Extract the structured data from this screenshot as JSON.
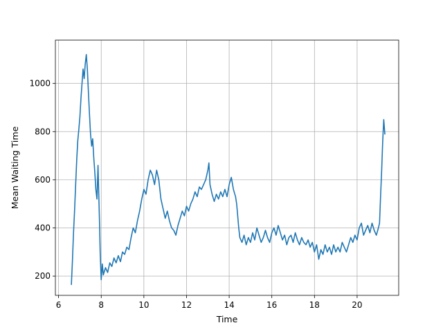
{
  "chart_data": {
    "type": "line",
    "title": "",
    "xlabel": "Time",
    "ylabel": "Mean Waiting Time",
    "xlim": [
      5.85,
      21.95
    ],
    "ylim": [
      120,
      1180
    ],
    "x_ticks": [
      6,
      8,
      10,
      12,
      14,
      16,
      18,
      20
    ],
    "y_ticks": [
      200,
      400,
      600,
      800,
      1000
    ],
    "x_tick_labels": [
      "6",
      "8",
      "10",
      "12",
      "14",
      "16",
      "18",
      "20"
    ],
    "y_tick_labels": [
      "200",
      "400",
      "600",
      "800",
      "1000"
    ],
    "grid": true,
    "legend": "none",
    "series": [
      {
        "color": "#1f77b4",
        "points": [
          [
            6.6,
            165
          ],
          [
            6.65,
            260
          ],
          [
            6.7,
            380
          ],
          [
            6.75,
            470
          ],
          [
            6.8,
            580
          ],
          [
            6.85,
            680
          ],
          [
            6.9,
            760
          ],
          [
            6.95,
            810
          ],
          [
            7.0,
            860
          ],
          [
            7.05,
            940
          ],
          [
            7.1,
            1000
          ],
          [
            7.15,
            1060
          ],
          [
            7.2,
            1020
          ],
          [
            7.25,
            1080
          ],
          [
            7.3,
            1120
          ],
          [
            7.35,
            1060
          ],
          [
            7.4,
            960
          ],
          [
            7.45,
            870
          ],
          [
            7.5,
            790
          ],
          [
            7.55,
            740
          ],
          [
            7.6,
            770
          ],
          [
            7.65,
            690
          ],
          [
            7.7,
            630
          ],
          [
            7.75,
            560
          ],
          [
            7.8,
            520
          ],
          [
            7.85,
            660
          ],
          [
            7.88,
            560
          ],
          [
            7.92,
            420
          ],
          [
            7.95,
            300
          ],
          [
            8.0,
            185
          ],
          [
            8.05,
            250
          ],
          [
            8.1,
            205
          ],
          [
            8.2,
            235
          ],
          [
            8.3,
            215
          ],
          [
            8.4,
            255
          ],
          [
            8.5,
            240
          ],
          [
            8.6,
            275
          ],
          [
            8.7,
            255
          ],
          [
            8.8,
            285
          ],
          [
            8.9,
            260
          ],
          [
            9.0,
            300
          ],
          [
            9.1,
            290
          ],
          [
            9.2,
            320
          ],
          [
            9.3,
            310
          ],
          [
            9.4,
            360
          ],
          [
            9.5,
            400
          ],
          [
            9.6,
            380
          ],
          [
            9.7,
            430
          ],
          [
            9.8,
            470
          ],
          [
            9.9,
            520
          ],
          [
            10.0,
            560
          ],
          [
            10.1,
            540
          ],
          [
            10.2,
            600
          ],
          [
            10.3,
            640
          ],
          [
            10.4,
            620
          ],
          [
            10.5,
            580
          ],
          [
            10.6,
            640
          ],
          [
            10.7,
            600
          ],
          [
            10.8,
            520
          ],
          [
            10.9,
            480
          ],
          [
            11.0,
            440
          ],
          [
            11.1,
            470
          ],
          [
            11.2,
            430
          ],
          [
            11.3,
            400
          ],
          [
            11.4,
            390
          ],
          [
            11.5,
            370
          ],
          [
            11.6,
            410
          ],
          [
            11.7,
            440
          ],
          [
            11.8,
            470
          ],
          [
            11.9,
            450
          ],
          [
            12.0,
            490
          ],
          [
            12.1,
            470
          ],
          [
            12.2,
            500
          ],
          [
            12.3,
            520
          ],
          [
            12.4,
            550
          ],
          [
            12.5,
            530
          ],
          [
            12.6,
            570
          ],
          [
            12.7,
            560
          ],
          [
            12.8,
            580
          ],
          [
            12.9,
            600
          ],
          [
            13.0,
            640
          ],
          [
            13.05,
            670
          ],
          [
            13.1,
            580
          ],
          [
            13.2,
            540
          ],
          [
            13.3,
            510
          ],
          [
            13.4,
            540
          ],
          [
            13.5,
            520
          ],
          [
            13.6,
            550
          ],
          [
            13.7,
            530
          ],
          [
            13.8,
            560
          ],
          [
            13.9,
            530
          ],
          [
            14.0,
            580
          ],
          [
            14.1,
            610
          ],
          [
            14.2,
            560
          ],
          [
            14.3,
            530
          ],
          [
            14.35,
            500
          ],
          [
            14.4,
            450
          ],
          [
            14.45,
            400
          ],
          [
            14.5,
            360
          ],
          [
            14.6,
            340
          ],
          [
            14.7,
            370
          ],
          [
            14.8,
            330
          ],
          [
            14.9,
            360
          ],
          [
            15.0,
            340
          ],
          [
            15.1,
            380
          ],
          [
            15.2,
            350
          ],
          [
            15.3,
            400
          ],
          [
            15.4,
            370
          ],
          [
            15.5,
            340
          ],
          [
            15.6,
            360
          ],
          [
            15.7,
            390
          ],
          [
            15.8,
            360
          ],
          [
            15.9,
            340
          ],
          [
            16.0,
            380
          ],
          [
            16.1,
            400
          ],
          [
            16.2,
            370
          ],
          [
            16.3,
            410
          ],
          [
            16.4,
            380
          ],
          [
            16.5,
            350
          ],
          [
            16.6,
            370
          ],
          [
            16.7,
            330
          ],
          [
            16.8,
            360
          ],
          [
            16.9,
            370
          ],
          [
            17.0,
            340
          ],
          [
            17.1,
            380
          ],
          [
            17.2,
            350
          ],
          [
            17.3,
            330
          ],
          [
            17.4,
            360
          ],
          [
            17.5,
            340
          ],
          [
            17.6,
            330
          ],
          [
            17.7,
            350
          ],
          [
            17.8,
            320
          ],
          [
            17.9,
            340
          ],
          [
            18.0,
            300
          ],
          [
            18.1,
            330
          ],
          [
            18.2,
            270
          ],
          [
            18.3,
            310
          ],
          [
            18.4,
            290
          ],
          [
            18.5,
            330
          ],
          [
            18.6,
            300
          ],
          [
            18.7,
            320
          ],
          [
            18.8,
            290
          ],
          [
            18.9,
            330
          ],
          [
            19.0,
            300
          ],
          [
            19.1,
            320
          ],
          [
            19.2,
            300
          ],
          [
            19.3,
            340
          ],
          [
            19.4,
            320
          ],
          [
            19.5,
            300
          ],
          [
            19.6,
            330
          ],
          [
            19.7,
            360
          ],
          [
            19.8,
            340
          ],
          [
            19.9,
            370
          ],
          [
            20.0,
            350
          ],
          [
            20.1,
            400
          ],
          [
            20.2,
            420
          ],
          [
            20.3,
            370
          ],
          [
            20.4,
            390
          ],
          [
            20.5,
            410
          ],
          [
            20.6,
            380
          ],
          [
            20.7,
            420
          ],
          [
            20.8,
            390
          ],
          [
            20.9,
            370
          ],
          [
            21.0,
            400
          ],
          [
            21.05,
            420
          ],
          [
            21.1,
            530
          ],
          [
            21.15,
            640
          ],
          [
            21.2,
            760
          ],
          [
            21.25,
            850
          ],
          [
            21.3,
            790
          ]
        ]
      }
    ]
  }
}
